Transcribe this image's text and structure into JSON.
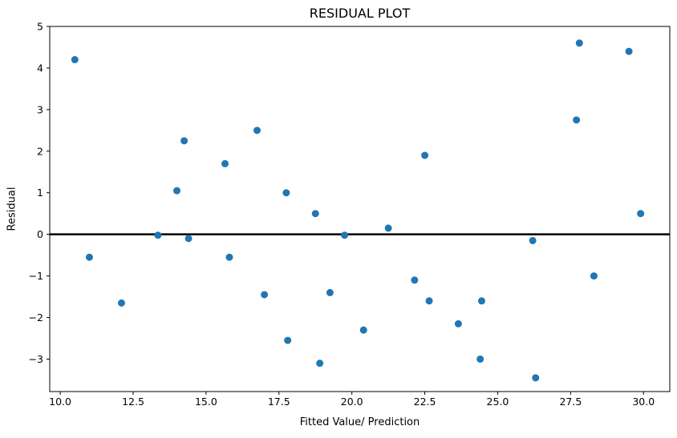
{
  "chart_data": {
    "type": "scatter",
    "title": "RESIDUAL PLOT",
    "xlabel": "Fitted Value/ Prediction",
    "ylabel": "Residual",
    "xlim": [
      9.64,
      30.9
    ],
    "ylim": [
      -3.78,
      5.0
    ],
    "xticks": [
      10.0,
      12.5,
      15.0,
      17.5,
      20.0,
      22.5,
      25.0,
      27.5,
      30.0
    ],
    "yticks": [
      5,
      4,
      3,
      2,
      1,
      0,
      -1,
      -2,
      -3
    ],
    "grid": false,
    "legend": null,
    "marker_color": "#1f77b4",
    "marker_radius": 4.5,
    "axis_color": "#000000",
    "background_color": "#ffffff",
    "zero_line": {
      "y": 0,
      "color": "#000000",
      "width": 2.5
    },
    "points": [
      [
        10.5,
        4.2
      ],
      [
        11.0,
        -0.55
      ],
      [
        12.1,
        -1.65
      ],
      [
        13.35,
        -0.02
      ],
      [
        14.0,
        1.05
      ],
      [
        14.25,
        2.25
      ],
      [
        14.4,
        -0.1
      ],
      [
        15.65,
        1.7
      ],
      [
        15.8,
        -0.55
      ],
      [
        16.75,
        2.5
      ],
      [
        17.0,
        -1.45
      ],
      [
        17.75,
        1.0
      ],
      [
        17.8,
        -2.55
      ],
      [
        18.75,
        0.5
      ],
      [
        18.9,
        -3.1
      ],
      [
        19.25,
        -1.4
      ],
      [
        19.75,
        -0.02
      ],
      [
        20.4,
        -2.3
      ],
      [
        21.25,
        0.15
      ],
      [
        22.15,
        -1.1
      ],
      [
        22.5,
        1.9
      ],
      [
        22.65,
        -1.6
      ],
      [
        23.65,
        -2.15
      ],
      [
        24.4,
        -3.0
      ],
      [
        24.45,
        -1.6
      ],
      [
        26.2,
        -0.15
      ],
      [
        26.3,
        -3.45
      ],
      [
        27.7,
        2.75
      ],
      [
        27.8,
        4.6
      ],
      [
        28.3,
        -1.0
      ],
      [
        29.5,
        4.4
      ],
      [
        29.9,
        0.5
      ]
    ]
  }
}
